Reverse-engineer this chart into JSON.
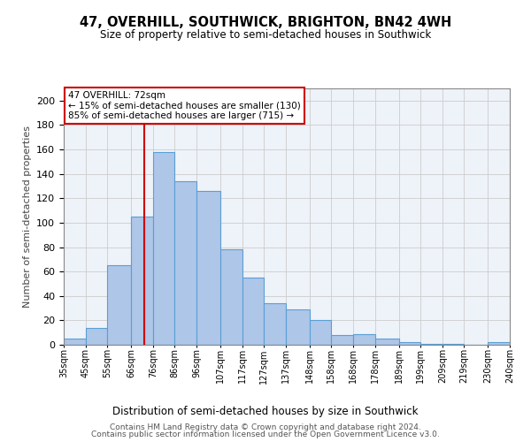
{
  "title": "47, OVERHILL, SOUTHWICK, BRIGHTON, BN42 4WH",
  "subtitle": "Size of property relative to semi-detached houses in Southwick",
  "xlabel": "Distribution of semi-detached houses by size in Southwick",
  "ylabel": "Number of semi-detached properties",
  "footer1": "Contains HM Land Registry data © Crown copyright and database right 2024.",
  "footer2": "Contains public sector information licensed under the Open Government Licence v3.0.",
  "property_label": "47 OVERHILL: 72sqm",
  "smaller_text": "← 15% of semi-detached houses are smaller (130)",
  "larger_text": "85% of semi-detached houses are larger (715) →",
  "property_size": 72,
  "bin_edges": [
    35,
    45,
    55,
    66,
    76,
    86,
    96,
    107,
    117,
    127,
    137,
    148,
    158,
    168,
    178,
    189,
    199,
    209,
    219,
    230,
    240
  ],
  "bar_heights": [
    5,
    14,
    65,
    105,
    158,
    134,
    126,
    78,
    55,
    34,
    29,
    20,
    8,
    9,
    5,
    2,
    1,
    1,
    0,
    2
  ],
  "bar_color": "#aec6e8",
  "bar_edge_color": "#5a9fd4",
  "vline_color": "#cc0000",
  "vline_x": 72,
  "annotation_box_color": "#cc0000",
  "ylim": [
    0,
    210
  ],
  "yticks": [
    0,
    20,
    40,
    60,
    80,
    100,
    120,
    140,
    160,
    180,
    200
  ],
  "grid_color": "#cccccc",
  "background_color": "#eef2f9"
}
